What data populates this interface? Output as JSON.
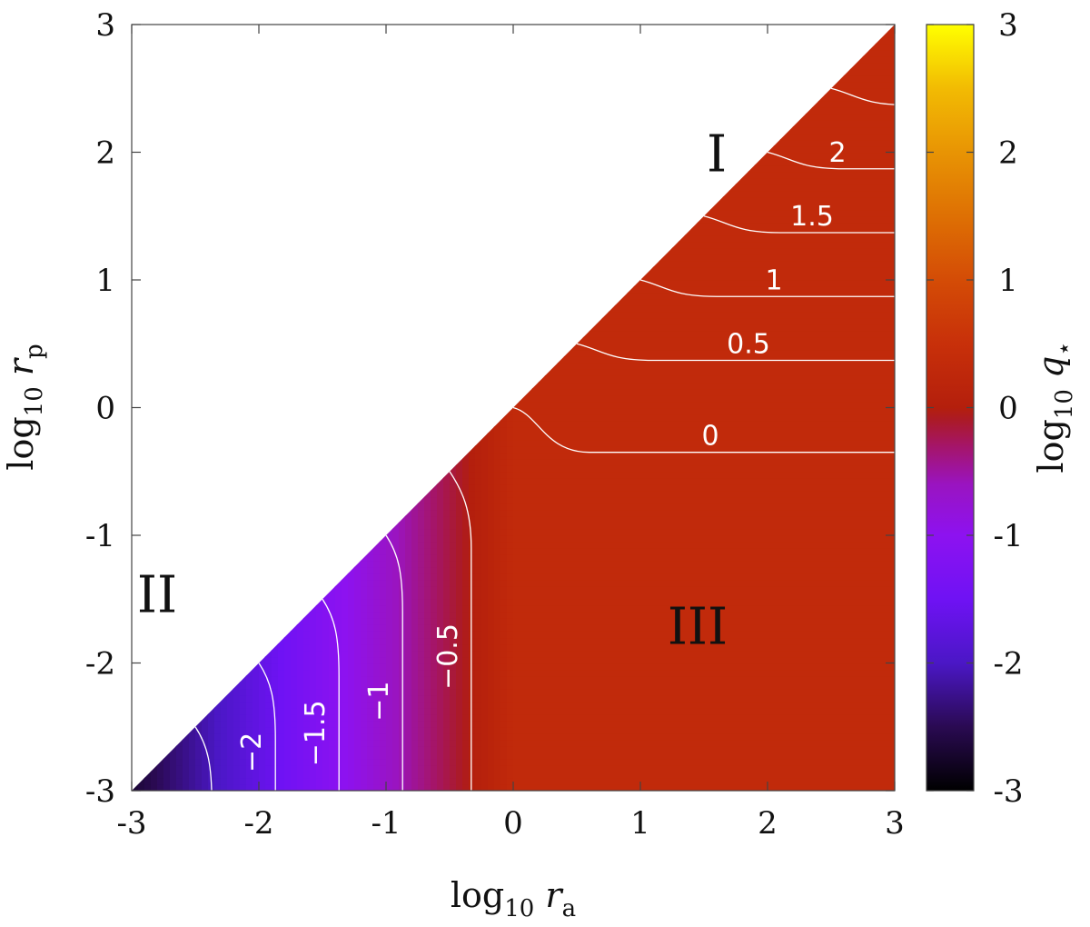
{
  "chart_data": {
    "type": "heatmap",
    "title": "",
    "x_axis": {
      "label_base": "log",
      "label_sub": "10",
      "label_var": "r",
      "label_var_sub": "a",
      "range": [
        -3,
        3
      ],
      "ticks": [
        -3,
        -2,
        -1,
        0,
        1,
        2,
        3
      ],
      "tick_labels": [
        "-3",
        "-2",
        "-1",
        "0",
        "1",
        "2",
        "3"
      ]
    },
    "y_axis": {
      "label_base": "log",
      "label_sub": "10",
      "label_var": "r",
      "label_var_sub": "p",
      "range": [
        -3,
        3
      ],
      "ticks": [
        -3,
        -2,
        -1,
        0,
        1,
        2,
        3
      ],
      "tick_labels": [
        "-3",
        "-2",
        "-1",
        "0",
        "1",
        "2",
        "3"
      ]
    },
    "colorbar": {
      "label_base": "log",
      "label_sub": "10",
      "label_var": "q",
      "label_var_sub": "⋆",
      "range": [
        -3,
        3
      ],
      "ticks": [
        -3,
        -2,
        -1,
        0,
        1,
        2,
        3
      ],
      "tick_labels": [
        "-3",
        "-2",
        "-1",
        "0",
        "1",
        "2",
        "3"
      ],
      "palette": [
        {
          "v": -3.0,
          "c": "#000000"
        },
        {
          "v": -2.5,
          "c": "#2a0a52"
        },
        {
          "v": -2.0,
          "c": "#4b17c6"
        },
        {
          "v": -1.5,
          "c": "#6f12f4"
        },
        {
          "v": -1.0,
          "c": "#8d12f0"
        },
        {
          "v": -0.6,
          "c": "#9a14c0"
        },
        {
          "v": -0.3,
          "c": "#a51568"
        },
        {
          "v": -0.1,
          "c": "#ab1a28"
        },
        {
          "v": 0.0,
          "c": "#b41f0c"
        },
        {
          "v": 0.5,
          "c": "#c8300a"
        },
        {
          "v": 1.0,
          "c": "#d44c06"
        },
        {
          "v": 1.5,
          "c": "#de7004"
        },
        {
          "v": 2.0,
          "c": "#e89404"
        },
        {
          "v": 2.5,
          "c": "#f2bb03"
        },
        {
          "v": 3.0,
          "c": "#ffff00"
        }
      ]
    },
    "domain_constraint": "rp <= ra",
    "upper_plateau_rows": [
      {
        "level": 0.0,
        "rp_plateau": -0.35,
        "starts_at_ra": 0.0,
        "label": "0",
        "label_at_ra": 1.55
      },
      {
        "level": 0.5,
        "rp_plateau": 0.37,
        "starts_at_ra": 0.5,
        "label": "0.5",
        "label_at_ra": 1.85
      },
      {
        "level": 1.0,
        "rp_plateau": 0.87,
        "starts_at_ra": 1.0,
        "label": "1",
        "label_at_ra": 2.05
      },
      {
        "level": 1.5,
        "rp_plateau": 1.37,
        "starts_at_ra": 1.5,
        "label": "1.5",
        "label_at_ra": 2.35
      },
      {
        "level": 2.0,
        "rp_plateau": 1.87,
        "starts_at_ra": 2.0,
        "label": "2",
        "label_at_ra": 2.55
      },
      {
        "level": 2.5,
        "rp_plateau": 2.37,
        "starts_at_ra": 2.5,
        "label": "",
        "label_at_ra": null
      }
    ],
    "lower_plateau_columns": [
      {
        "level": -0.5,
        "ra_plateau": -0.33,
        "starts_at_rp": -0.5,
        "label": "−0.5",
        "label_at_rp": -1.95
      },
      {
        "level": -1.0,
        "ra_plateau": -0.87,
        "starts_at_rp": -1.0,
        "label": "−1",
        "label_at_rp": -2.3
      },
      {
        "level": -1.5,
        "ra_plateau": -1.37,
        "starts_at_rp": -1.5,
        "label": "−1.5",
        "label_at_rp": -2.55
      },
      {
        "level": -2.0,
        "ra_plateau": -1.87,
        "starts_at_rp": -2.0,
        "label": "−2",
        "label_at_rp": -2.7
      },
      {
        "level": -2.5,
        "ra_plateau": -2.37,
        "starts_at_rp": -2.5,
        "label": "",
        "label_at_rp": null
      }
    ],
    "regions": [
      {
        "label": "I",
        "ra": 1.6,
        "rp": 1.85
      },
      {
        "label": "II",
        "ra": -2.8,
        "rp": -1.6
      },
      {
        "label": "III",
        "ra": 1.45,
        "rp": -1.85
      }
    ],
    "grid": false
  }
}
